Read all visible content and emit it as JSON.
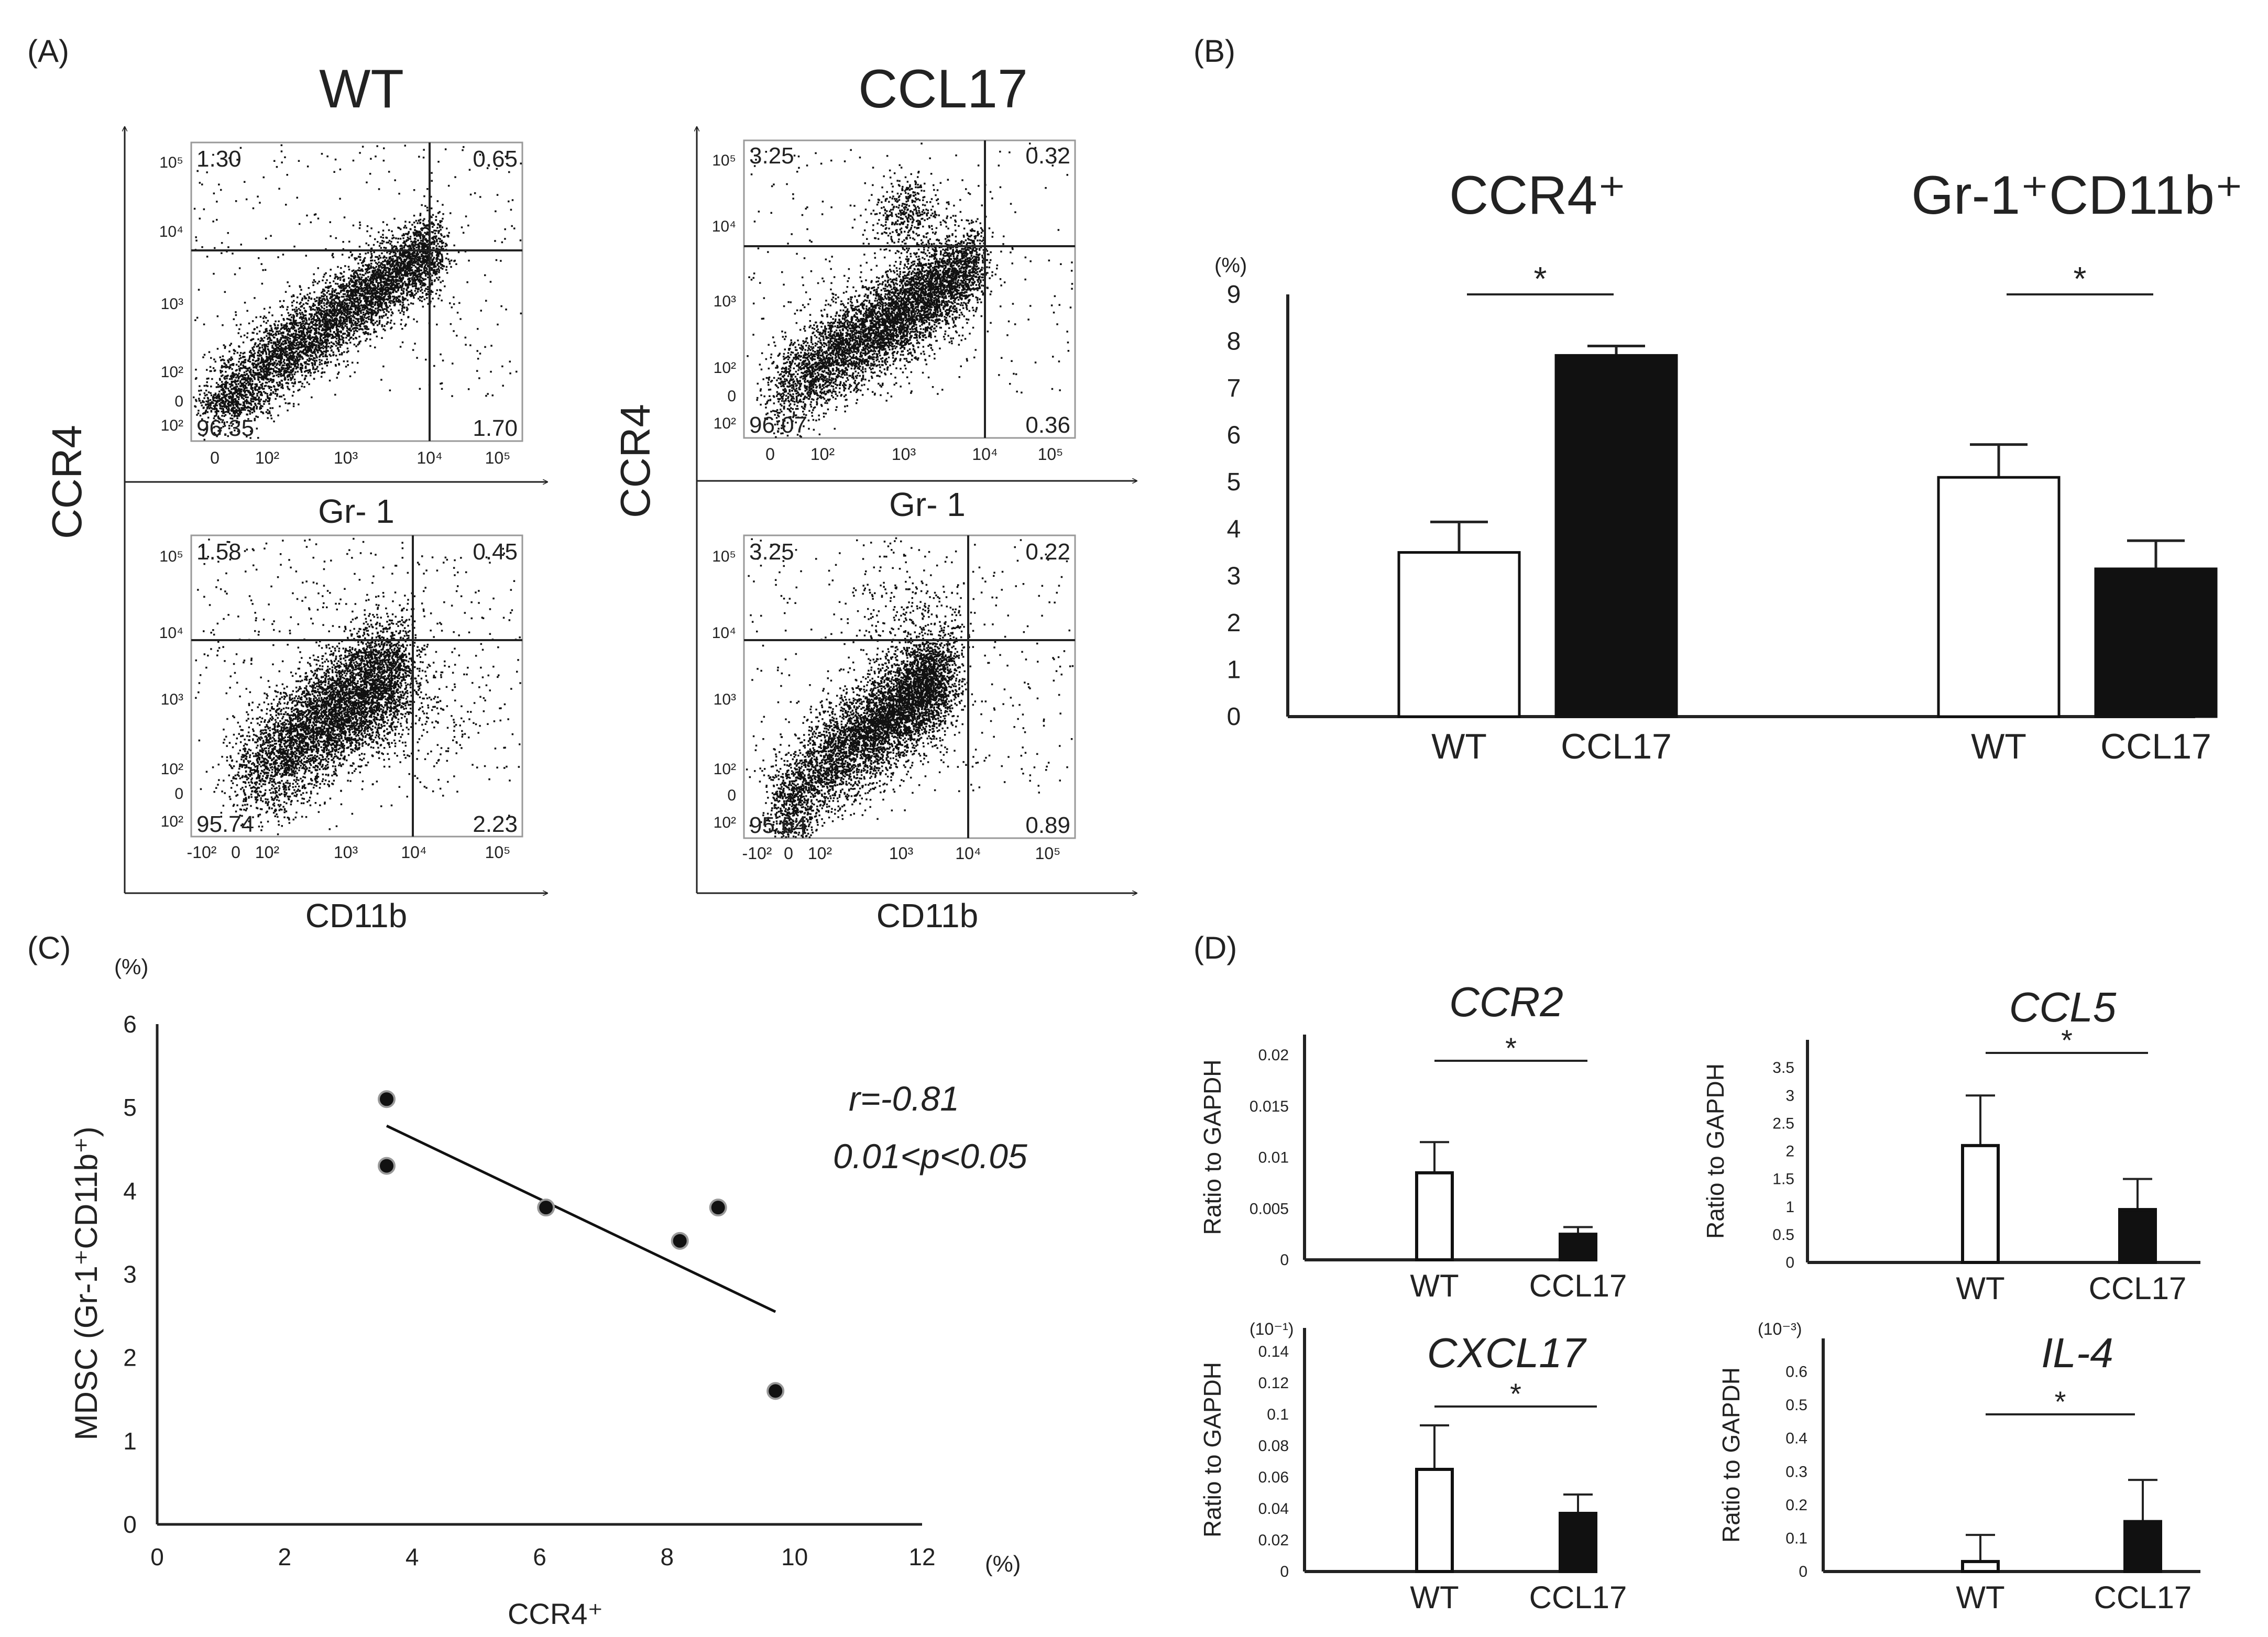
{
  "panels": {
    "a": {
      "label": "(A)",
      "groups": [
        {
          "title": "WT",
          "y_label": "CCR4",
          "plots": [
            {
              "x_label": "Gr- 1",
              "quadrants": {
                "ul": "1.30",
                "ur": "0.65",
                "ll": "96.35",
                "lr": "1.70"
              }
            },
            {
              "x_label": "CD11b",
              "quadrants": {
                "ul": "1.58",
                "ur": "0.45",
                "ll": "95.74",
                "lr": "2.23"
              }
            }
          ]
        },
        {
          "title": "CCL17",
          "y_label": "CCR4",
          "plots": [
            {
              "x_label": "Gr- 1",
              "quadrants": {
                "ul": "3.25",
                "ur": "0.32",
                "ll": "96.07",
                "lr": "0.36"
              }
            },
            {
              "x_label": "CD11b",
              "quadrants": {
                "ul": "3.25",
                "ur": "0.22",
                "ll": "95.64",
                "lr": "0.89"
              }
            }
          ]
        }
      ],
      "y_ticks": [
        "10⁵",
        "10⁴",
        "10³",
        "10²",
        "0",
        "-10²"
      ],
      "x_ticks_gr1": [
        "0",
        "10²",
        "10³",
        "10⁴",
        "10⁵"
      ],
      "x_ticks_cd11b": [
        "-10²",
        "0",
        "10²",
        "10³",
        "10⁴",
        "10⁵"
      ]
    },
    "b": {
      "label": "(B)",
      "unit": "(%)",
      "titles": [
        "CCR4⁺",
        "Gr-1⁺CD11b⁺"
      ],
      "significance": "*"
    },
    "c": {
      "label": "(C)",
      "y_unit": "(%)",
      "x_unit": "(%)",
      "stat_r": "r=-0.81",
      "stat_p": "0.01<p<0.05"
    },
    "d": {
      "label": "(D)",
      "significance": "*",
      "y_label": "Ratio to GAPDH"
    }
  },
  "chart_data": [
    {
      "panel": "B",
      "type": "bar",
      "ylabel": "(%)",
      "ylim": [
        0,
        9
      ],
      "yticks": [
        0,
        1,
        2,
        3,
        4,
        5,
        6,
        7,
        8,
        9
      ],
      "groups": [
        {
          "title": "CCR4⁺",
          "categories": [
            "WT",
            "CCL17"
          ],
          "values": [
            3.5,
            7.7
          ],
          "errors": [
            0.65,
            0.2
          ]
        },
        {
          "title": "Gr-1⁺CD11b⁺",
          "categories": [
            "WT",
            "CCL17"
          ],
          "values": [
            5.1,
            3.15
          ],
          "errors": [
            0.7,
            0.6
          ]
        }
      ],
      "significance": [
        "*",
        "*"
      ],
      "colors": [
        "#ffffff",
        "#111111"
      ]
    },
    {
      "panel": "C",
      "type": "scatter",
      "xlabel": "CCR4⁺",
      "ylabel": "MDSC (Gr-1⁺CD11b⁺)",
      "xlim": [
        0,
        12
      ],
      "ylim": [
        0,
        6
      ],
      "xticks": [
        0,
        2,
        4,
        6,
        8,
        10,
        12
      ],
      "yticks": [
        0,
        1,
        2,
        3,
        4,
        5,
        6
      ],
      "points": [
        {
          "x": 3.6,
          "y": 5.1
        },
        {
          "x": 3.6,
          "y": 4.3
        },
        {
          "x": 6.1,
          "y": 3.8
        },
        {
          "x": 8.2,
          "y": 3.4
        },
        {
          "x": 8.8,
          "y": 3.8
        },
        {
          "x": 9.7,
          "y": 1.6
        }
      ],
      "fit_line": {
        "x": [
          3.6,
          9.7
        ],
        "y": [
          4.78,
          2.55
        ]
      },
      "annotation": [
        "r=-0.81",
        "0.01<p<0.05"
      ]
    },
    {
      "panel": "D",
      "type": "bar",
      "title": "CCR2",
      "ylabel": "Ratio to GAPDH",
      "ylim": [
        0,
        0.022
      ],
      "yticks": [
        "0",
        "0.005",
        "0.01",
        "0.015",
        "0.02"
      ],
      "categories": [
        "WT",
        "CCL17"
      ],
      "values": [
        0.0085,
        0.0025
      ],
      "errors": [
        0.003,
        0.0007
      ],
      "significance": "*"
    },
    {
      "panel": "D",
      "type": "bar",
      "title": "CCL5",
      "ylabel": "Ratio to GAPDH",
      "ylim": [
        0,
        4
      ],
      "yticks": [
        "0",
        "0.5",
        "1",
        "1.5",
        "2",
        "2.5",
        "3",
        "3.5"
      ],
      "categories": [
        "WT",
        "CCL17"
      ],
      "values": [
        2.1,
        0.95
      ],
      "errors": [
        0.9,
        0.55
      ],
      "significance": "*"
    },
    {
      "panel": "D",
      "type": "bar",
      "title": "CXCL17",
      "scale": "(10⁻¹)",
      "ylabel": "Ratio to GAPDH",
      "ylim": [
        0,
        0.155
      ],
      "yticks": [
        "0",
        "0.02",
        "0.04",
        "0.06",
        "0.08",
        "0.1",
        "0.12",
        "0.14"
      ],
      "categories": [
        "WT",
        "CCL17"
      ],
      "values": [
        0.065,
        0.037
      ],
      "errors": [
        0.028,
        0.012
      ],
      "significance": "*"
    },
    {
      "panel": "D",
      "type": "bar",
      "title": "IL-4",
      "scale": "(10⁻³)",
      "ylabel": "Ratio to GAPDH",
      "ylim": [
        0,
        0.7
      ],
      "yticks": [
        "0",
        "0.1",
        "0.2",
        "0.3",
        "0.4",
        "0.5",
        "0.6"
      ],
      "categories": [
        "WT",
        "CCL17"
      ],
      "values": [
        0.03,
        0.15
      ],
      "errors": [
        0.08,
        0.125
      ],
      "significance": "*"
    }
  ]
}
